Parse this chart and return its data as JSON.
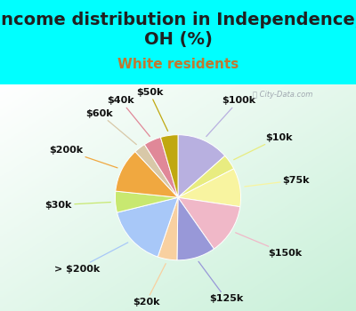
{
  "title": "Income distribution in Independence,\nOH (%)",
  "subtitle": "White residents",
  "bg_cyan": "#00FFFF",
  "labels": [
    "$100k",
    "$10k",
    "$75k",
    "$150k",
    "$125k",
    "$20k",
    "> $200k",
    "$30k",
    "$200k",
    "$60k",
    "$40k",
    "$50k"
  ],
  "values": [
    13.5,
    4.0,
    10.0,
    13.0,
    10.0,
    5.0,
    16.0,
    5.5,
    11.5,
    3.0,
    4.5,
    4.5
  ],
  "colors": [
    "#b8b0e0",
    "#e8ec80",
    "#f8f4a0",
    "#f0b8c8",
    "#9898d8",
    "#f8d0a0",
    "#a8c8f8",
    "#c8e870",
    "#f0a840",
    "#d8c8a8",
    "#e08898",
    "#c0a810"
  ],
  "title_fontsize": 14,
  "subtitle_fontsize": 11,
  "title_color": "#202020",
  "subtitle_color": "#c07830",
  "label_fontsize": 8,
  "startangle": 90
}
